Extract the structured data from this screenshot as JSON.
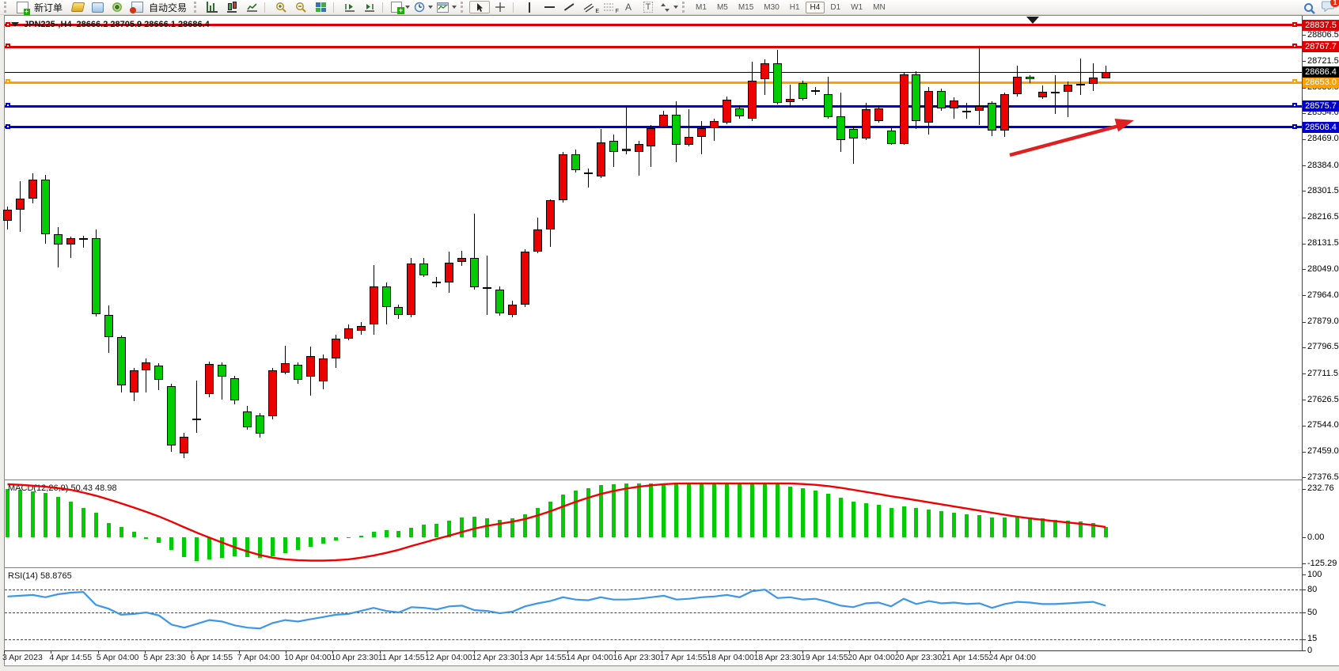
{
  "toolbar": {
    "new_order_label": "新订单",
    "autotrade_label": "自动交易",
    "timeframes": [
      "M1",
      "M5",
      "M15",
      "M30",
      "H1",
      "H4",
      "D1",
      "W1",
      "MN"
    ],
    "active_timeframe": "H4",
    "notification_count": "1",
    "icon_letters": {
      "channel": "E",
      "fibonacci": "F",
      "text": "A",
      "label": "T"
    }
  },
  "title": {
    "symbol": "JPN225-,H4",
    "ohlc_text": "28666.2 28705.9 28666.1 28686.4"
  },
  "indicators": {
    "macd_label": "MACD(12,26,9) 50.43 48.98",
    "rsi_label": "RSI(14) 58.8765"
  },
  "chart_data": {
    "type": "candlestick",
    "symbol": "JPN225-,H4",
    "timeframe": "H4",
    "current_bar": {
      "open": 28666.2,
      "high": 28705.9,
      "low": 28666.1,
      "close": 28686.4
    },
    "current_price": 28686.4,
    "up_color": "#ed0000",
    "down_color": "#00cd00",
    "grid": false,
    "y_axis_ticks": [
      28806.5,
      28721.5,
      28636.5,
      28554.0,
      28469.0,
      28384.0,
      28301.5,
      28216.5,
      28131.5,
      28049.0,
      27964.0,
      27879.0,
      27796.5,
      27711.5,
      27626.5,
      27544.0,
      27459.0,
      27376.5
    ],
    "levels": [
      {
        "price": 28837.5,
        "color": "#dd0000"
      },
      {
        "price": 28767.7,
        "color": "#dd0000"
      },
      {
        "price": 28653.0,
        "color": "#ff9f00"
      },
      {
        "price": 28575.7,
        "color": "#0000cc"
      },
      {
        "price": 28508.4,
        "color": "#0000cc"
      }
    ],
    "x_labels": [
      "3 Apr 2023",
      "4 Apr 14:55",
      "5 Apr 04:00",
      "5 Apr 23:30",
      "6 Apr 14:55",
      "7 Apr 04:00",
      "10 Apr 04:00",
      "10 Apr 23:30",
      "11 Apr 14:55",
      "12 Apr 04:00",
      "12 Apr 23:30",
      "13 Apr 14:55",
      "14 Apr 04:00",
      "16 Apr 23:30",
      "17 Apr 14:55",
      "18 Apr 04:00",
      "18 Apr 23:30",
      "19 Apr 14:55",
      "20 Apr 04:00",
      "20 Apr 23:30",
      "21 Apr 14:55",
      "24 Apr 04:00"
    ],
    "candles": [
      [
        28206,
        28252,
        28178,
        28242
      ],
      [
        28242,
        28333,
        28170,
        28278
      ],
      [
        28278,
        28358,
        28262,
        28338
      ],
      [
        28338,
        28354,
        28132,
        28162
      ],
      [
        28162,
        28186,
        28054,
        28128
      ],
      [
        28128,
        28154,
        28084,
        28148
      ],
      [
        28148,
        28156,
        28118,
        28150
      ],
      [
        28150,
        28177,
        27896,
        27902
      ],
      [
        27902,
        27932,
        27778,
        27830
      ],
      [
        27830,
        27835,
        27649,
        27673
      ],
      [
        27650,
        27730,
        27622,
        27721
      ],
      [
        27721,
        27760,
        27651,
        27747
      ],
      [
        27738,
        27744,
        27657,
        27690
      ],
      [
        27670,
        27678,
        27458,
        27478
      ],
      [
        27452,
        27520,
        27438,
        27508
      ],
      [
        27560,
        27690,
        27520,
        27565
      ],
      [
        27646,
        27751,
        27636,
        27743
      ],
      [
        27741,
        27748,
        27628,
        27702
      ],
      [
        27696,
        27704,
        27611,
        27625
      ],
      [
        27589,
        27606,
        27530,
        27538
      ],
      [
        27576,
        27585,
        27504,
        27517
      ],
      [
        27572,
        27730,
        27564,
        27721
      ],
      [
        27715,
        27802,
        27708,
        27744
      ],
      [
        27741,
        27747,
        27679,
        27690
      ],
      [
        27701,
        27798,
        27640,
        27768
      ],
      [
        27687,
        27772,
        27660,
        27760
      ],
      [
        27760,
        27836,
        27730,
        27824
      ],
      [
        27824,
        27870,
        27820,
        27858
      ],
      [
        27849,
        27878,
        27838,
        27866
      ],
      [
        27871,
        28062,
        27836,
        27994
      ],
      [
        27994,
        28007,
        27871,
        27926
      ],
      [
        27926,
        27934,
        27888,
        27900
      ],
      [
        27900,
        28084,
        27894,
        28067
      ],
      [
        28067,
        28084,
        28024,
        28028
      ],
      [
        28005,
        28024,
        27990,
        28008
      ],
      [
        28007,
        28105,
        27973,
        28071
      ],
      [
        28073,
        28109,
        28060,
        28084
      ],
      [
        28084,
        28229,
        27984,
        27990
      ],
      [
        27990,
        28092,
        27900,
        27984
      ],
      [
        27984,
        27994,
        27898,
        27905
      ],
      [
        27900,
        27947,
        27894,
        27934
      ],
      [
        27934,
        28113,
        27926,
        28105
      ],
      [
        28105,
        28216,
        28101,
        28177
      ],
      [
        28177,
        28275,
        28120,
        28271
      ],
      [
        28271,
        28429,
        28263,
        28420
      ],
      [
        28420,
        28436,
        28361,
        28369
      ],
      [
        28362,
        28374,
        28314,
        28355
      ],
      [
        28348,
        28501,
        28344,
        28459
      ],
      [
        28463,
        28484,
        28378,
        28429
      ],
      [
        28429,
        28576,
        28420,
        28437
      ],
      [
        28429,
        28463,
        28352,
        28454
      ],
      [
        28446,
        28514,
        28378,
        28506
      ],
      [
        28510,
        28561,
        28505,
        28548
      ],
      [
        28548,
        28591,
        28395,
        28450
      ],
      [
        28450,
        28565,
        28445,
        28476
      ],
      [
        28476,
        28527,
        28420,
        28506
      ],
      [
        28506,
        28536,
        28463,
        28529
      ],
      [
        28523,
        28608,
        28518,
        28597
      ],
      [
        28570,
        28578,
        28535,
        28544
      ],
      [
        28535,
        28719,
        28527,
        28659
      ],
      [
        28663,
        28727,
        28612,
        28714
      ],
      [
        28714,
        28757,
        28582,
        28587
      ],
      [
        28588,
        28646,
        28574,
        28599
      ],
      [
        28650,
        28659,
        28595,
        28599
      ],
      [
        28627,
        28638,
        28612,
        28622
      ],
      [
        28616,
        28672,
        28535,
        28540
      ],
      [
        28544,
        28621,
        28429,
        28467
      ],
      [
        28501,
        28510,
        28390,
        28471
      ],
      [
        28471,
        28587,
        28467,
        28565
      ],
      [
        28527,
        28578,
        28522,
        28569
      ],
      [
        28497,
        28505,
        28450,
        28454
      ],
      [
        28454,
        28684,
        28450,
        28680
      ],
      [
        28680,
        28689,
        28501,
        28527
      ],
      [
        28523,
        28638,
        28484,
        28625
      ],
      [
        28625,
        28633,
        28561,
        28569
      ],
      [
        28569,
        28604,
        28535,
        28595
      ],
      [
        28562,
        28587,
        28535,
        28560
      ],
      [
        28560,
        28768,
        28516,
        28576
      ],
      [
        28587,
        28592,
        28478,
        28497
      ],
      [
        28497,
        28621,
        28476,
        28614
      ],
      [
        28614,
        28706,
        28608,
        28672
      ],
      [
        28672,
        28676,
        28650,
        28662
      ],
      [
        28605,
        28642,
        28599,
        28622
      ],
      [
        28618,
        28676,
        28552,
        28622
      ],
      [
        28622,
        28655,
        28540,
        28646
      ],
      [
        28644,
        28731,
        28612,
        28648
      ],
      [
        28648,
        28714,
        28625,
        28668
      ],
      [
        28666.2,
        28705.9,
        28666.1,
        28686.4
      ]
    ],
    "macd": {
      "params": "12,26,9",
      "main_value": 50.43,
      "signal_value": 48.98,
      "axis": [
        232.76,
        0.0,
        -125.29
      ],
      "histogram": [
        233,
        228,
        222,
        212,
        196,
        170,
        140,
        118,
        68,
        48,
        25,
        -8,
        -28,
        -60,
        -95,
        -112,
        -105,
        -98,
        -92,
        -96,
        -100,
        -90,
        -75,
        -60,
        -45,
        -30,
        -15,
        -5,
        8,
        25,
        35,
        30,
        45,
        60,
        65,
        80,
        95,
        100,
        90,
        85,
        90,
        110,
        140,
        170,
        205,
        225,
        235,
        250,
        255,
        258,
        260,
        262,
        264,
        262,
        260,
        258,
        257,
        259,
        255,
        257,
        261,
        255,
        245,
        235,
        225,
        210,
        190,
        172,
        162,
        156,
        142,
        150,
        141,
        135,
        126,
        118,
        111,
        108,
        96,
        96,
        100,
        97,
        90,
        85,
        80,
        75,
        68,
        50.43
      ],
      "signal_series": [
        255,
        252,
        248,
        243,
        236,
        228,
        215,
        200,
        182,
        163,
        143,
        122,
        100,
        75,
        48,
        22,
        -2,
        -25,
        -48,
        -68,
        -85,
        -98,
        -106,
        -110,
        -112,
        -112,
        -110,
        -106,
        -98,
        -88,
        -75,
        -60,
        -42,
        -25,
        -8,
        8,
        25,
        42,
        55,
        65,
        75,
        88,
        105,
        125,
        148,
        170,
        190,
        208,
        222,
        234,
        243,
        250,
        255,
        258,
        260,
        261,
        262,
        262,
        262,
        262,
        262,
        261,
        259,
        256,
        252,
        246,
        238,
        228,
        218,
        208,
        197,
        188,
        178,
        168,
        158,
        148,
        138,
        128,
        118,
        108,
        99,
        91,
        84,
        77,
        71,
        65,
        58,
        48.98
      ]
    },
    "rsi": {
      "period": 14,
      "value": 58.8765,
      "axis": [
        100,
        80,
        50,
        15,
        0
      ],
      "dashed_levels": [
        80,
        50,
        15
      ],
      "series": [
        71,
        72,
        73,
        70,
        74,
        76,
        77,
        60,
        55,
        47,
        48,
        50,
        46,
        34,
        30,
        35,
        40,
        38,
        33,
        30,
        29,
        36,
        40,
        38,
        41,
        44,
        47,
        48,
        52,
        56,
        52,
        50,
        57,
        56,
        54,
        58,
        59,
        53,
        52,
        49,
        51,
        58,
        62,
        65,
        70,
        67,
        66,
        70,
        67,
        67,
        68,
        70,
        72,
        67,
        68,
        70,
        71,
        73,
        70,
        78,
        80,
        69,
        70,
        67,
        68,
        64,
        59,
        57,
        62,
        63,
        58,
        68,
        61,
        65,
        62,
        63,
        61,
        62,
        56,
        61,
        64,
        63,
        61,
        61,
        62,
        63,
        64,
        58.88
      ]
    },
    "annotation": {
      "type": "arrow",
      "color": "#e02020"
    }
  }
}
